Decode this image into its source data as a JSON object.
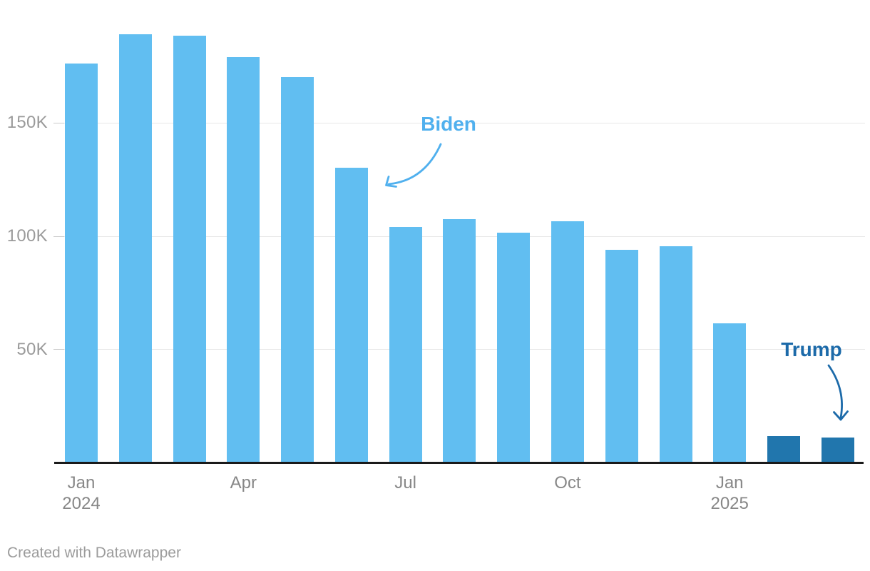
{
  "chart_data": {
    "type": "bar",
    "title": "",
    "categories": [
      "Jan 2024",
      "Feb 2024",
      "Mar 2024",
      "Apr 2024",
      "May 2024",
      "Jun 2024",
      "Jul 2024",
      "Aug 2024",
      "Sep 2024",
      "Oct 2024",
      "Nov 2024",
      "Dec 2024",
      "Jan 2025",
      "Feb 2025",
      "Mar 2025"
    ],
    "values": [
      176000,
      189000,
      188500,
      179000,
      170000,
      130000,
      104000,
      107500,
      101500,
      106500,
      94000,
      95500,
      61500,
      11800,
      11200
    ],
    "series_by_bar": [
      "Biden",
      "Biden",
      "Biden",
      "Biden",
      "Biden",
      "Biden",
      "Biden",
      "Biden",
      "Biden",
      "Biden",
      "Biden",
      "Biden",
      "Biden",
      "Trump",
      "Trump"
    ],
    "series": [
      {
        "name": "Biden",
        "color": "#61bef1",
        "x": [
          "Jan 2024",
          "Feb 2024",
          "Mar 2024",
          "Apr 2024",
          "May 2024",
          "Jun 2024",
          "Jul 2024",
          "Aug 2024",
          "Sep 2024",
          "Oct 2024",
          "Nov 2024",
          "Dec 2024",
          "Jan 2025"
        ],
        "values": [
          176000,
          189000,
          188500,
          179000,
          170000,
          130000,
          104000,
          107500,
          101500,
          106500,
          94000,
          95500,
          61500
        ]
      },
      {
        "name": "Trump",
        "color": "#2176ad",
        "x": [
          "Feb 2025",
          "Mar 2025"
        ],
        "values": [
          11800,
          11200
        ]
      }
    ],
    "xlabel": "",
    "ylabel": "",
    "ylim": [
      0,
      200000
    ],
    "grid": "horizontal-only",
    "legend_position": "inline-annotations",
    "y_ticks": [
      {
        "value": 50000,
        "label": "50K"
      },
      {
        "value": 100000,
        "label": "100K"
      },
      {
        "value": 150000,
        "label": "150K"
      }
    ],
    "x_ticks": [
      {
        "bar_index": 0,
        "line1": "Jan",
        "line2": "2024"
      },
      {
        "bar_index": 3,
        "line1": "Apr",
        "line2": ""
      },
      {
        "bar_index": 6,
        "line1": "Jul",
        "line2": ""
      },
      {
        "bar_index": 9,
        "line1": "Oct",
        "line2": ""
      },
      {
        "bar_index": 12,
        "line1": "Jan",
        "line2": "2025"
      }
    ]
  },
  "annotations": {
    "biden": {
      "label": "Biden",
      "color": "#50b0ee"
    },
    "trump": {
      "label": "Trump",
      "color": "#1c6aa9"
    }
  },
  "colors": {
    "biden_bar": "#61bef1",
    "trump_bar": "#2176ad",
    "axis_line": "#1a1a1a",
    "gridline": "#e8e8e8",
    "grid_tick": "#cccccc",
    "y_label_text": "#9a9a9a",
    "x_label_text": "#878787",
    "background": "#ffffff"
  },
  "footer": {
    "credit": "Created with Datawrapper"
  }
}
